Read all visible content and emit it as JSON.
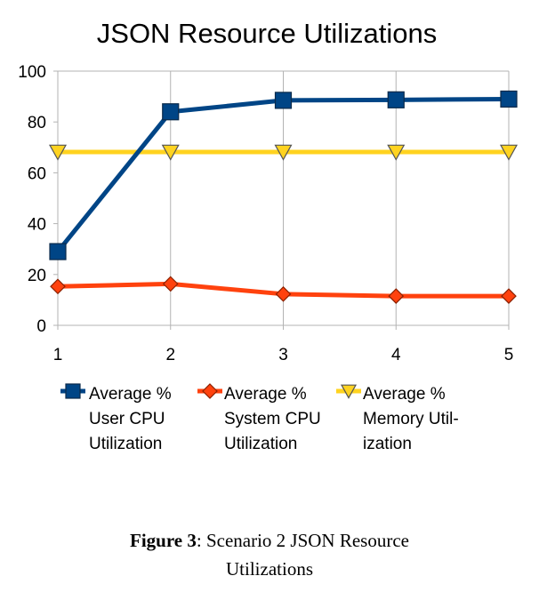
{
  "chart_data": {
    "type": "line",
    "title": "JSON Resource Utilizations",
    "xlabel": "",
    "ylabel": "",
    "x": [
      1,
      2,
      3,
      4,
      5
    ],
    "ylim": [
      0,
      100
    ],
    "yticks": [
      0,
      20,
      40,
      60,
      80,
      100
    ],
    "grid": "vertical",
    "legend_position": "bottom",
    "series": [
      {
        "name": "Average % User CPU Utilization",
        "legend_lines": [
          "Average %",
          "User CPU",
          "Utilization"
        ],
        "values": [
          29,
          84,
          88.5,
          88.7,
          89
        ],
        "color": "#004586",
        "marker": "square"
      },
      {
        "name": "Average % System CPU Utilization",
        "legend_lines": [
          "Average %",
          "System CPU",
          "Utilization"
        ],
        "values": [
          15.3,
          16.3,
          12.3,
          11.5,
          11.5
        ],
        "color": "#ff420e",
        "marker": "diamond"
      },
      {
        "name": "Average % Memory Utilization",
        "legend_lines": [
          "Average %",
          "Memory Util-",
          "ization"
        ],
        "values": [
          68.2,
          68.2,
          68.2,
          68.2,
          68.2
        ],
        "color": "#ffd320",
        "marker": "triangle-down"
      }
    ]
  },
  "caption": {
    "label": "Figure 3",
    "text_line1": ": Scenario 2 JSON Resource",
    "text_line2": "Utilizations"
  }
}
